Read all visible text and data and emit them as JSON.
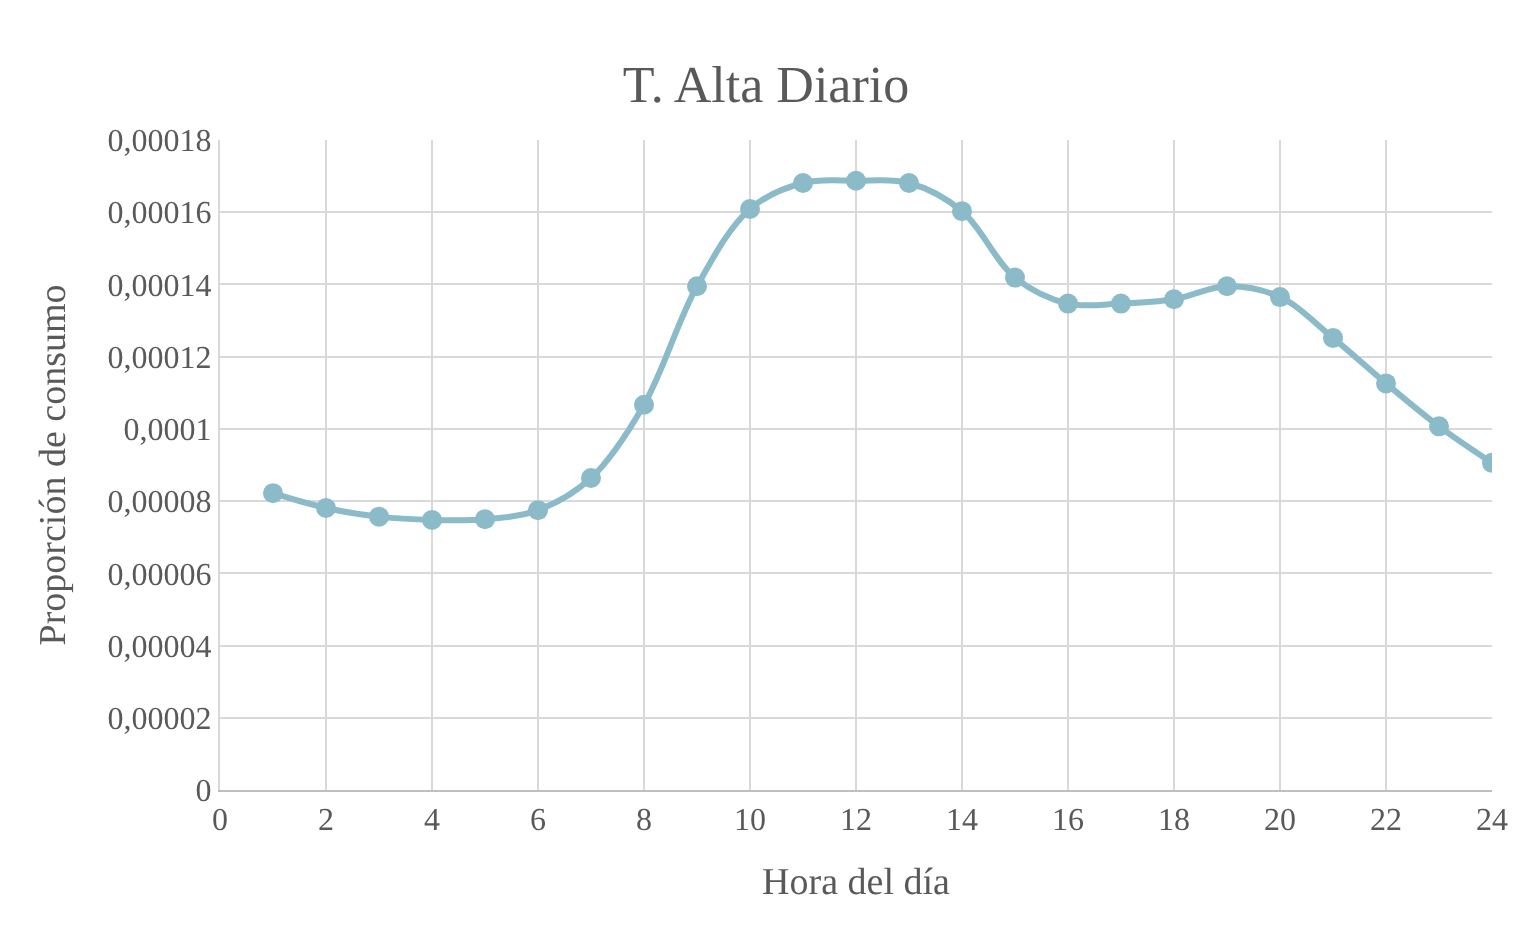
{
  "chart_data": {
    "type": "line",
    "title": "T. Alta Diario",
    "xlabel": "Hora del día",
    "ylabel": "Proporción de consumo",
    "x": [
      1,
      2,
      3,
      4,
      5,
      6,
      7,
      8,
      9,
      10,
      11,
      12,
      13,
      14,
      15,
      16,
      17,
      18,
      19,
      20,
      21,
      22,
      23,
      24
    ],
    "series": [
      {
        "color": "#8bbac8",
        "values": [
          8.22e-05,
          7.81e-05,
          7.57e-05,
          7.48e-05,
          7.5e-05,
          7.75e-05,
          8.64e-05,
          0.0001067,
          0.0001395,
          0.0001609,
          0.0001681,
          0.0001687,
          0.0001681,
          0.0001603,
          0.0001419,
          0.0001347,
          0.0001347,
          0.0001359,
          0.0001395,
          0.0001365,
          0.0001252,
          0.0001126,
          0.0001007,
          9.06e-05
        ]
      }
    ],
    "xlim": [
      0,
      24
    ],
    "xticks": [
      0,
      2,
      4,
      6,
      8,
      10,
      12,
      14,
      16,
      18,
      20,
      22,
      24
    ],
    "ylim": [
      0,
      0.00018
    ],
    "yticks": [
      {
        "value": 0,
        "label": "0"
      },
      {
        "value": 2e-05,
        "label": "0,00002"
      },
      {
        "value": 4e-05,
        "label": "0,00004"
      },
      {
        "value": 6e-05,
        "label": "0,00006"
      },
      {
        "value": 8e-05,
        "label": "0,00008"
      },
      {
        "value": 0.0001,
        "label": "0,0001"
      },
      {
        "value": 0.00012,
        "label": "0,00012"
      },
      {
        "value": 0.00014,
        "label": "0,00014"
      },
      {
        "value": 0.00016,
        "label": "0,00016"
      },
      {
        "value": 0.00018,
        "label": "0,00018"
      }
    ],
    "grid": true,
    "marker": "circle",
    "line_style": "solid",
    "legend": false
  }
}
